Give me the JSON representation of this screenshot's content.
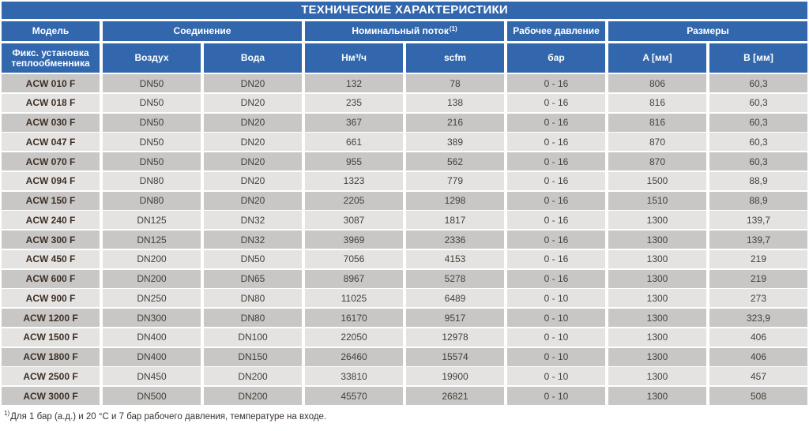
{
  "title": "ТЕХНИЧЕСКИЕ ХАРАКТЕРИСТИКИ",
  "header": {
    "groups": [
      {
        "label": "Модель",
        "span": 1
      },
      {
        "label": "Соединение",
        "span": 2
      },
      {
        "label": "Номинальный поток",
        "sup": "(1)",
        "span": 2
      },
      {
        "label": "Рабочее давление",
        "span": 1
      },
      {
        "label": "Размеры",
        "span": 2
      }
    ],
    "columns": [
      "Фикс. установка теплообменника",
      "Воздух",
      "Вода",
      "Нм³/ч",
      "scfm",
      "бар",
      "A [мм]",
      "B [мм]"
    ]
  },
  "rows": [
    [
      "ACW 010 F",
      "DN50",
      "DN20",
      "132",
      "78",
      "0 - 16",
      "806",
      "60,3"
    ],
    [
      "ACW 018 F",
      "DN50",
      "DN20",
      "235",
      "138",
      "0 - 16",
      "816",
      "60,3"
    ],
    [
      "ACW 030 F",
      "DN50",
      "DN20",
      "367",
      "216",
      "0 - 16",
      "816",
      "60,3"
    ],
    [
      "ACW 047 F",
      "DN50",
      "DN20",
      "661",
      "389",
      "0 - 16",
      "870",
      "60,3"
    ],
    [
      "ACW 070 F",
      "DN50",
      "DN20",
      "955",
      "562",
      "0 - 16",
      "870",
      "60,3"
    ],
    [
      "ACW 094 F",
      "DN80",
      "DN20",
      "1323",
      "779",
      "0 - 16",
      "1500",
      "88,9"
    ],
    [
      "ACW 150 F",
      "DN80",
      "DN20",
      "2205",
      "1298",
      "0 - 16",
      "1510",
      "88,9"
    ],
    [
      "ACW 240 F",
      "DN125",
      "DN32",
      "3087",
      "1817",
      "0 - 16",
      "1300",
      "139,7"
    ],
    [
      "ACW 300 F",
      "DN125",
      "DN32",
      "3969",
      "2336",
      "0 - 16",
      "1300",
      "139,7"
    ],
    [
      "ACW 450 F",
      "DN200",
      "DN50",
      "7056",
      "4153",
      "0 - 16",
      "1300",
      "219"
    ],
    [
      "ACW 600 F",
      "DN200",
      "DN65",
      "8967",
      "5278",
      "0 - 16",
      "1300",
      "219"
    ],
    [
      "ACW 900 F",
      "DN250",
      "DN80",
      "11025",
      "6489",
      "0 - 10",
      "1300",
      "273"
    ],
    [
      "ACW 1200 F",
      "DN300",
      "DN80",
      "16170",
      "9517",
      "0 - 10",
      "1300",
      "323,9"
    ],
    [
      "ACW 1500 F",
      "DN400",
      "DN100",
      "22050",
      "12978",
      "0 - 10",
      "1300",
      "406"
    ],
    [
      "ACW 1800 F",
      "DN400",
      "DN150",
      "26460",
      "15574",
      "0 - 10",
      "1300",
      "406"
    ],
    [
      "ACW 2500 F",
      "DN450",
      "DN200",
      "33810",
      "19900",
      "0 - 10",
      "1300",
      "457"
    ],
    [
      "ACW 3000 F",
      "DN500",
      "DN200",
      "45570",
      "26821",
      "0 - 10",
      "1300",
      "508"
    ]
  ],
  "footnote": {
    "marker": "1)",
    "text": "Для 1 бар (а.д.) и 20 °C и 7 бар рабочего давления, температуре на входе."
  },
  "colors": {
    "header_blue": "#3267ad",
    "row_dark": "#c8c7c5",
    "row_light": "#e4e3e1",
    "text_dark": "#46403a",
    "model_text": "#3e2f26"
  }
}
